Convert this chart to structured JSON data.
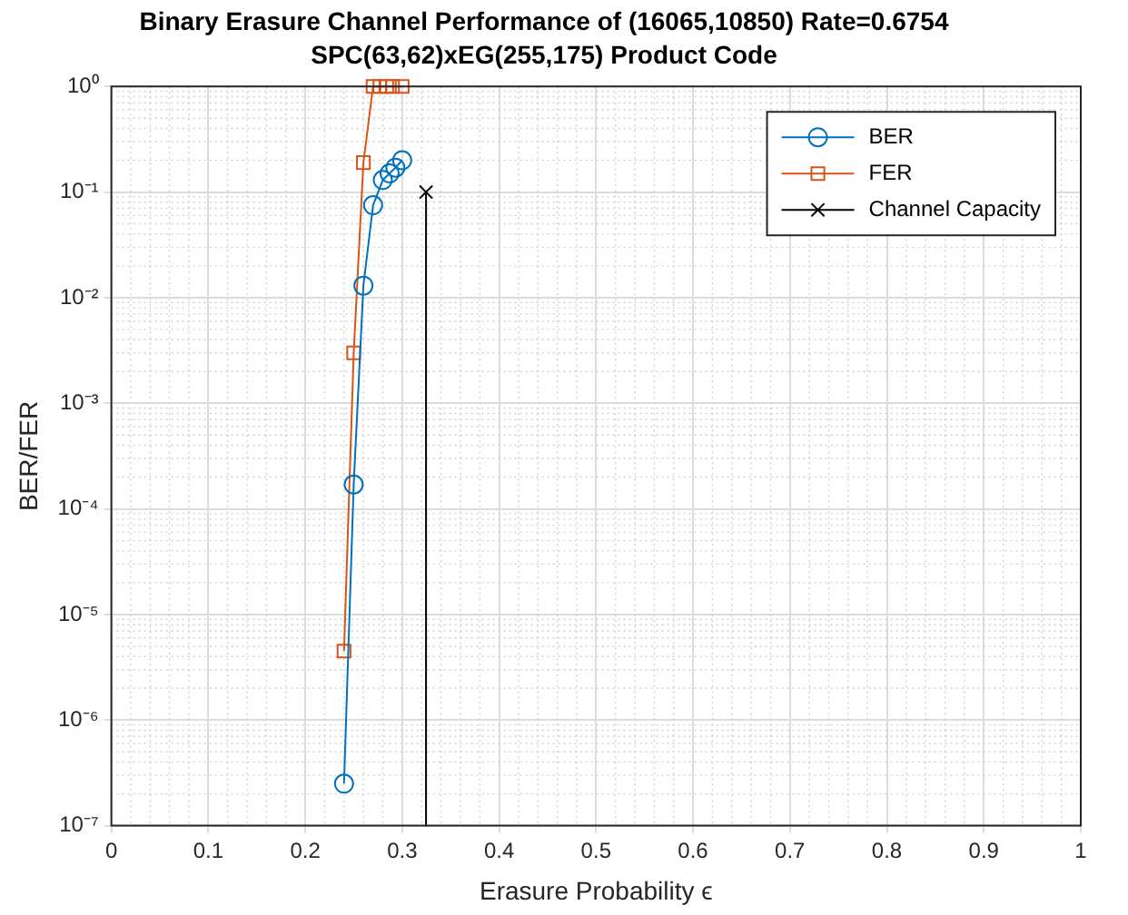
{
  "chart_data": {
    "type": "line",
    "title": "Binary Erasure Channel Performance of (16065,10850) Rate=0.6754",
    "subtitle": "SPC(63,62)xEG(255,175) Product Code",
    "xlabel": "Erasure Probability ϵ",
    "ylabel": "BER/FER",
    "log": "y",
    "grid": true,
    "legend": "top right",
    "line_style": "solid",
    "xlim": [
      0,
      1
    ],
    "xticks": [
      0,
      0.1,
      0.2,
      0.3,
      0.4,
      0.5,
      0.6,
      0.7,
      0.8,
      0.9,
      1
    ],
    "ylim": [
      1e-07,
      1
    ],
    "yticks": [
      {
        "value": 1e-07,
        "label": "10⁻⁷"
      },
      {
        "value": 1e-06,
        "label": "10⁻⁶"
      },
      {
        "value": 1e-05,
        "label": "10⁻⁵"
      },
      {
        "value": 0.0001,
        "label": "10⁻⁴"
      },
      {
        "value": 0.001,
        "label": "10⁻³"
      },
      {
        "value": 0.01,
        "label": "10⁻²"
      },
      {
        "value": 0.1,
        "label": "10⁻¹"
      },
      {
        "value": 1,
        "label": "10⁰"
      }
    ],
    "series": [
      {
        "name": "BER",
        "color": "#0072bd",
        "marker": "circle",
        "x": [
          0.24,
          0.25,
          0.26,
          0.27,
          0.28,
          0.287,
          0.293,
          0.3
        ],
        "values": [
          2.5e-07,
          0.00017,
          0.013,
          0.075,
          0.13,
          0.15,
          0.17,
          0.2
        ]
      },
      {
        "name": "FER",
        "color": "#d95319",
        "marker": "square",
        "x": [
          0.24,
          0.25,
          0.26,
          0.27,
          0.277,
          0.284,
          0.29,
          0.3
        ],
        "values": [
          4.5e-06,
          0.003,
          0.19,
          1,
          1,
          1,
          1,
          1
        ]
      },
      {
        "name": "Channel Capacity",
        "color": "#000000",
        "marker": "cross",
        "x": [
          0.3246,
          0.3246
        ],
        "values": [
          0.1,
          1e-07
        ]
      }
    ]
  }
}
